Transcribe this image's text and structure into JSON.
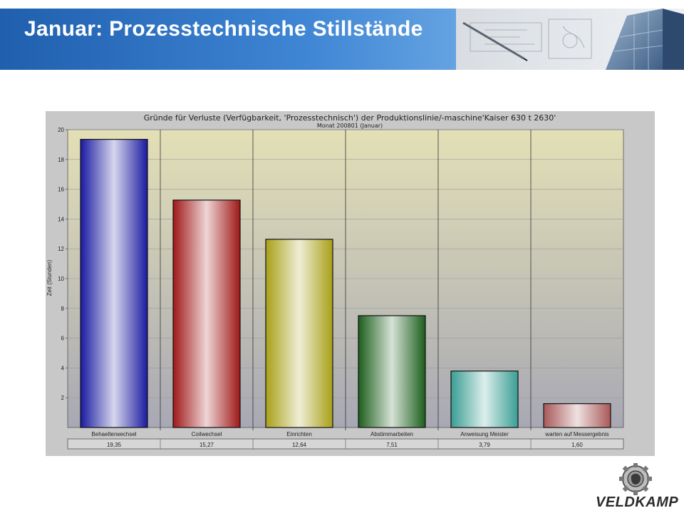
{
  "slide": {
    "title": "Januar: Prozesstechnische Stillstände",
    "logo_text": "VELDKAMP"
  },
  "chart_data": {
    "type": "bar",
    "title": "Gründe für Verluste (Verfügbarkeit, 'Prozesstechnisch') der Produktionslinie/-maschine'Kaiser 630 t 2630'",
    "subtitle": "Monat 200801 (Januar)",
    "xlabel": "",
    "ylabel": "Zeit (Stunden)",
    "ylim": [
      0,
      20
    ],
    "yticks": [
      2,
      4,
      6,
      8,
      10,
      12,
      14,
      16,
      18,
      20
    ],
    "categories": [
      "Behaelterwechsel",
      "Coilwechsel",
      "Einrichten",
      "Abstimmarbeiten",
      "Anweisung Meister",
      "warten auf Messergebnis"
    ],
    "values": [
      19.35,
      15.27,
      12.64,
      7.51,
      3.79,
      1.6
    ],
    "value_labels": [
      "19,35",
      "15,27",
      "12,64",
      "7,51",
      "3,79",
      "1,60"
    ],
    "colors": [
      "#1a1aa0",
      "#a01818",
      "#a8a018",
      "#1c5e1c",
      "#3a9e94",
      "#a85858"
    ],
    "grid": true,
    "legend": "none"
  }
}
